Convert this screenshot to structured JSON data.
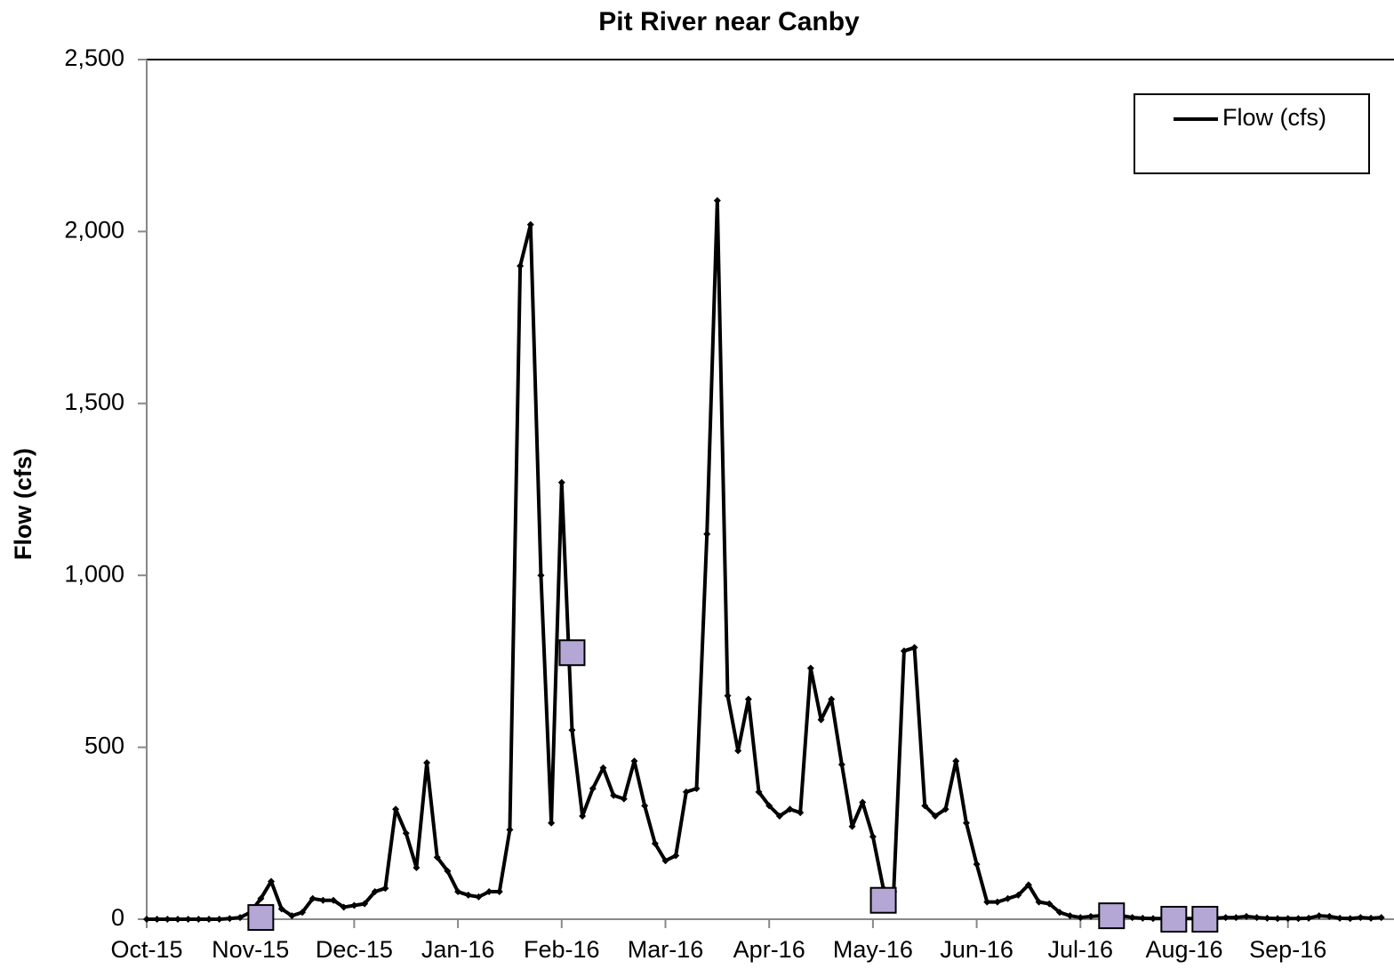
{
  "chart_data": {
    "type": "line",
    "title": "Pit River near Canby",
    "y_label": "Flow (cfs)",
    "categories": [
      "Oct-15",
      null,
      null,
      null,
      null,
      null,
      null,
      null,
      null,
      null,
      "Nov-15",
      null,
      null,
      null,
      null,
      null,
      null,
      null,
      null,
      null,
      "Dec-15",
      null,
      null,
      null,
      null,
      null,
      null,
      null,
      null,
      null,
      "Jan-16",
      null,
      null,
      null,
      null,
      null,
      null,
      null,
      null,
      null,
      "Feb-16",
      null,
      null,
      null,
      null,
      null,
      null,
      null,
      null,
      null,
      "Mar-16",
      null,
      null,
      null,
      null,
      null,
      null,
      null,
      null,
      null,
      "Apr-16",
      null,
      null,
      null,
      null,
      null,
      null,
      null,
      null,
      null,
      "May-16",
      null,
      null,
      null,
      null,
      null,
      null,
      null,
      null,
      null,
      "Jun-16",
      null,
      null,
      null,
      null,
      null,
      null,
      null,
      null,
      null,
      "Jul-16",
      null,
      null,
      null,
      null,
      null,
      null,
      null,
      null,
      null,
      "Aug-16",
      null,
      null,
      null,
      null,
      null,
      null,
      null,
      null,
      null,
      "Sep-16",
      null,
      null,
      null,
      null,
      null,
      null,
      null,
      null,
      null
    ],
    "series": [
      {
        "name": "Flow (cfs)",
        "color": "#000000",
        "values": [
          0,
          0,
          0,
          0,
          0,
          0,
          0,
          0,
          2,
          5,
          20,
          60,
          110,
          30,
          10,
          20,
          60,
          55,
          55,
          35,
          40,
          45,
          80,
          90,
          320,
          250,
          150,
          455,
          180,
          140,
          80,
          70,
          65,
          80,
          80,
          260,
          1900,
          2020,
          1000,
          280,
          1270,
          550,
          300,
          380,
          440,
          360,
          350,
          460,
          330,
          220,
          170,
          185,
          370,
          380,
          1120,
          2090,
          650,
          490,
          640,
          370,
          330,
          300,
          320,
          310,
          730,
          580,
          640,
          450,
          270,
          340,
          240,
          90,
          80,
          780,
          790,
          330,
          300,
          320,
          460,
          280,
          160,
          50,
          50,
          60,
          70,
          100,
          50,
          45,
          20,
          10,
          5,
          8,
          10,
          12,
          10,
          5,
          3,
          2,
          2,
          3,
          2,
          2,
          2,
          3,
          5,
          5,
          8,
          5,
          3,
          2,
          2,
          2,
          3,
          10,
          8,
          3,
          2,
          5,
          3,
          5
        ]
      },
      {
        "color": "#b4a7d6",
        "values": [
          null,
          null,
          null,
          null,
          null,
          null,
          null,
          null,
          null,
          null,
          null,
          5,
          null,
          null,
          null,
          null,
          null,
          null,
          null,
          null,
          null,
          null,
          null,
          null,
          null,
          null,
          null,
          null,
          null,
          null,
          null,
          null,
          null,
          null,
          null,
          null,
          null,
          null,
          null,
          null,
          null,
          775,
          null,
          null,
          null,
          null,
          null,
          null,
          null,
          null,
          null,
          null,
          null,
          null,
          null,
          null,
          null,
          null,
          null,
          null,
          null,
          null,
          null,
          null,
          null,
          null,
          null,
          null,
          null,
          null,
          null,
          55,
          null,
          null,
          null,
          null,
          null,
          null,
          null,
          null,
          null,
          null,
          null,
          null,
          null,
          null,
          null,
          null,
          null,
          null,
          null,
          null,
          null,
          10,
          null,
          null,
          null,
          null,
          null,
          0,
          null,
          null,
          0,
          null,
          null,
          null,
          null,
          null,
          null,
          null,
          null,
          null,
          null,
          null,
          null,
          null,
          null,
          null,
          null,
          null
        ]
      }
    ],
    "ylim": [
      0,
      2500
    ],
    "yticks": [
      0,
      500,
      {
        "value": 1000,
        "label": "1,000"
      },
      {
        "value": 1500,
        "label": "1,500"
      },
      {
        "value": 2000,
        "label": "2,000"
      },
      {
        "value": 2500,
        "label": "2,500"
      }
    ],
    "legend": "top-right"
  }
}
